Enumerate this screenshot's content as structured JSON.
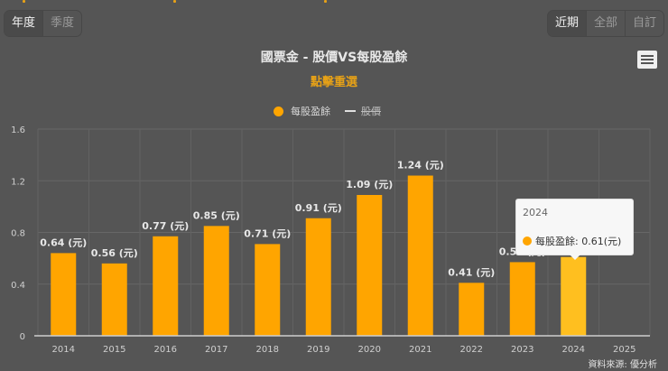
{
  "period_tabs": [
    {
      "label": "年度",
      "active": true
    },
    {
      "label": "季度",
      "active": false
    }
  ],
  "range_tabs": [
    {
      "label": "近期",
      "active": true
    },
    {
      "label": "全部",
      "active": false
    },
    {
      "label": "自訂",
      "active": false
    }
  ],
  "menu_icon": "hamburger-menu-icon",
  "title": "國票金 - 股價VS每股盈餘",
  "subtitle": "點擊重選",
  "legend": [
    {
      "label": "每股盈餘",
      "symbol": "circle",
      "color": "#FFA500",
      "visible": true
    },
    {
      "label": "股價",
      "symbol": "line",
      "color": "#E0E0E0",
      "visible": false
    }
  ],
  "tooltip": {
    "year": "2024",
    "series": "每股盈餘",
    "value_text": "每股盈餘: 0.61(元)"
  },
  "source": "資料來源: 優分析",
  "colors": {
    "background": "#555555",
    "bar": "#FFA500",
    "bar_highlight": "#FFBF1F",
    "accent": "#E6A117"
  },
  "chart_data": {
    "type": "bar",
    "title": "國票金 - 股價VS每股盈餘",
    "subtitle": "點擊重選",
    "xlabel": "",
    "ylabel": "",
    "categories": [
      "2014",
      "2015",
      "2016",
      "2017",
      "2018",
      "2019",
      "2020",
      "2021",
      "2022",
      "2023",
      "2024",
      "2025"
    ],
    "series": [
      {
        "name": "每股盈餘",
        "unit": "元",
        "values": [
          0.64,
          0.56,
          0.77,
          0.85,
          0.71,
          0.91,
          1.09,
          1.24,
          0.41,
          0.57,
          0.61,
          null
        ]
      },
      {
        "name": "股價",
        "values": [],
        "hidden": true
      }
    ],
    "data_labels": [
      "0.64 (元)",
      "0.56 (元)",
      "0.77 (元)",
      "0.85 (元)",
      "0.71 (元)",
      "0.91 (元)",
      "1.09 (元)",
      "1.24 (元)",
      "0.41 (元)",
      "0.57 (元)",
      "0.61 (元)",
      ""
    ],
    "yticks": [
      "0",
      "0.4",
      "0.8",
      "1.2",
      "1.6"
    ],
    "ylim": [
      0,
      1.6
    ],
    "grid": true,
    "legend_position": "top-center",
    "highlighted": "2024"
  }
}
